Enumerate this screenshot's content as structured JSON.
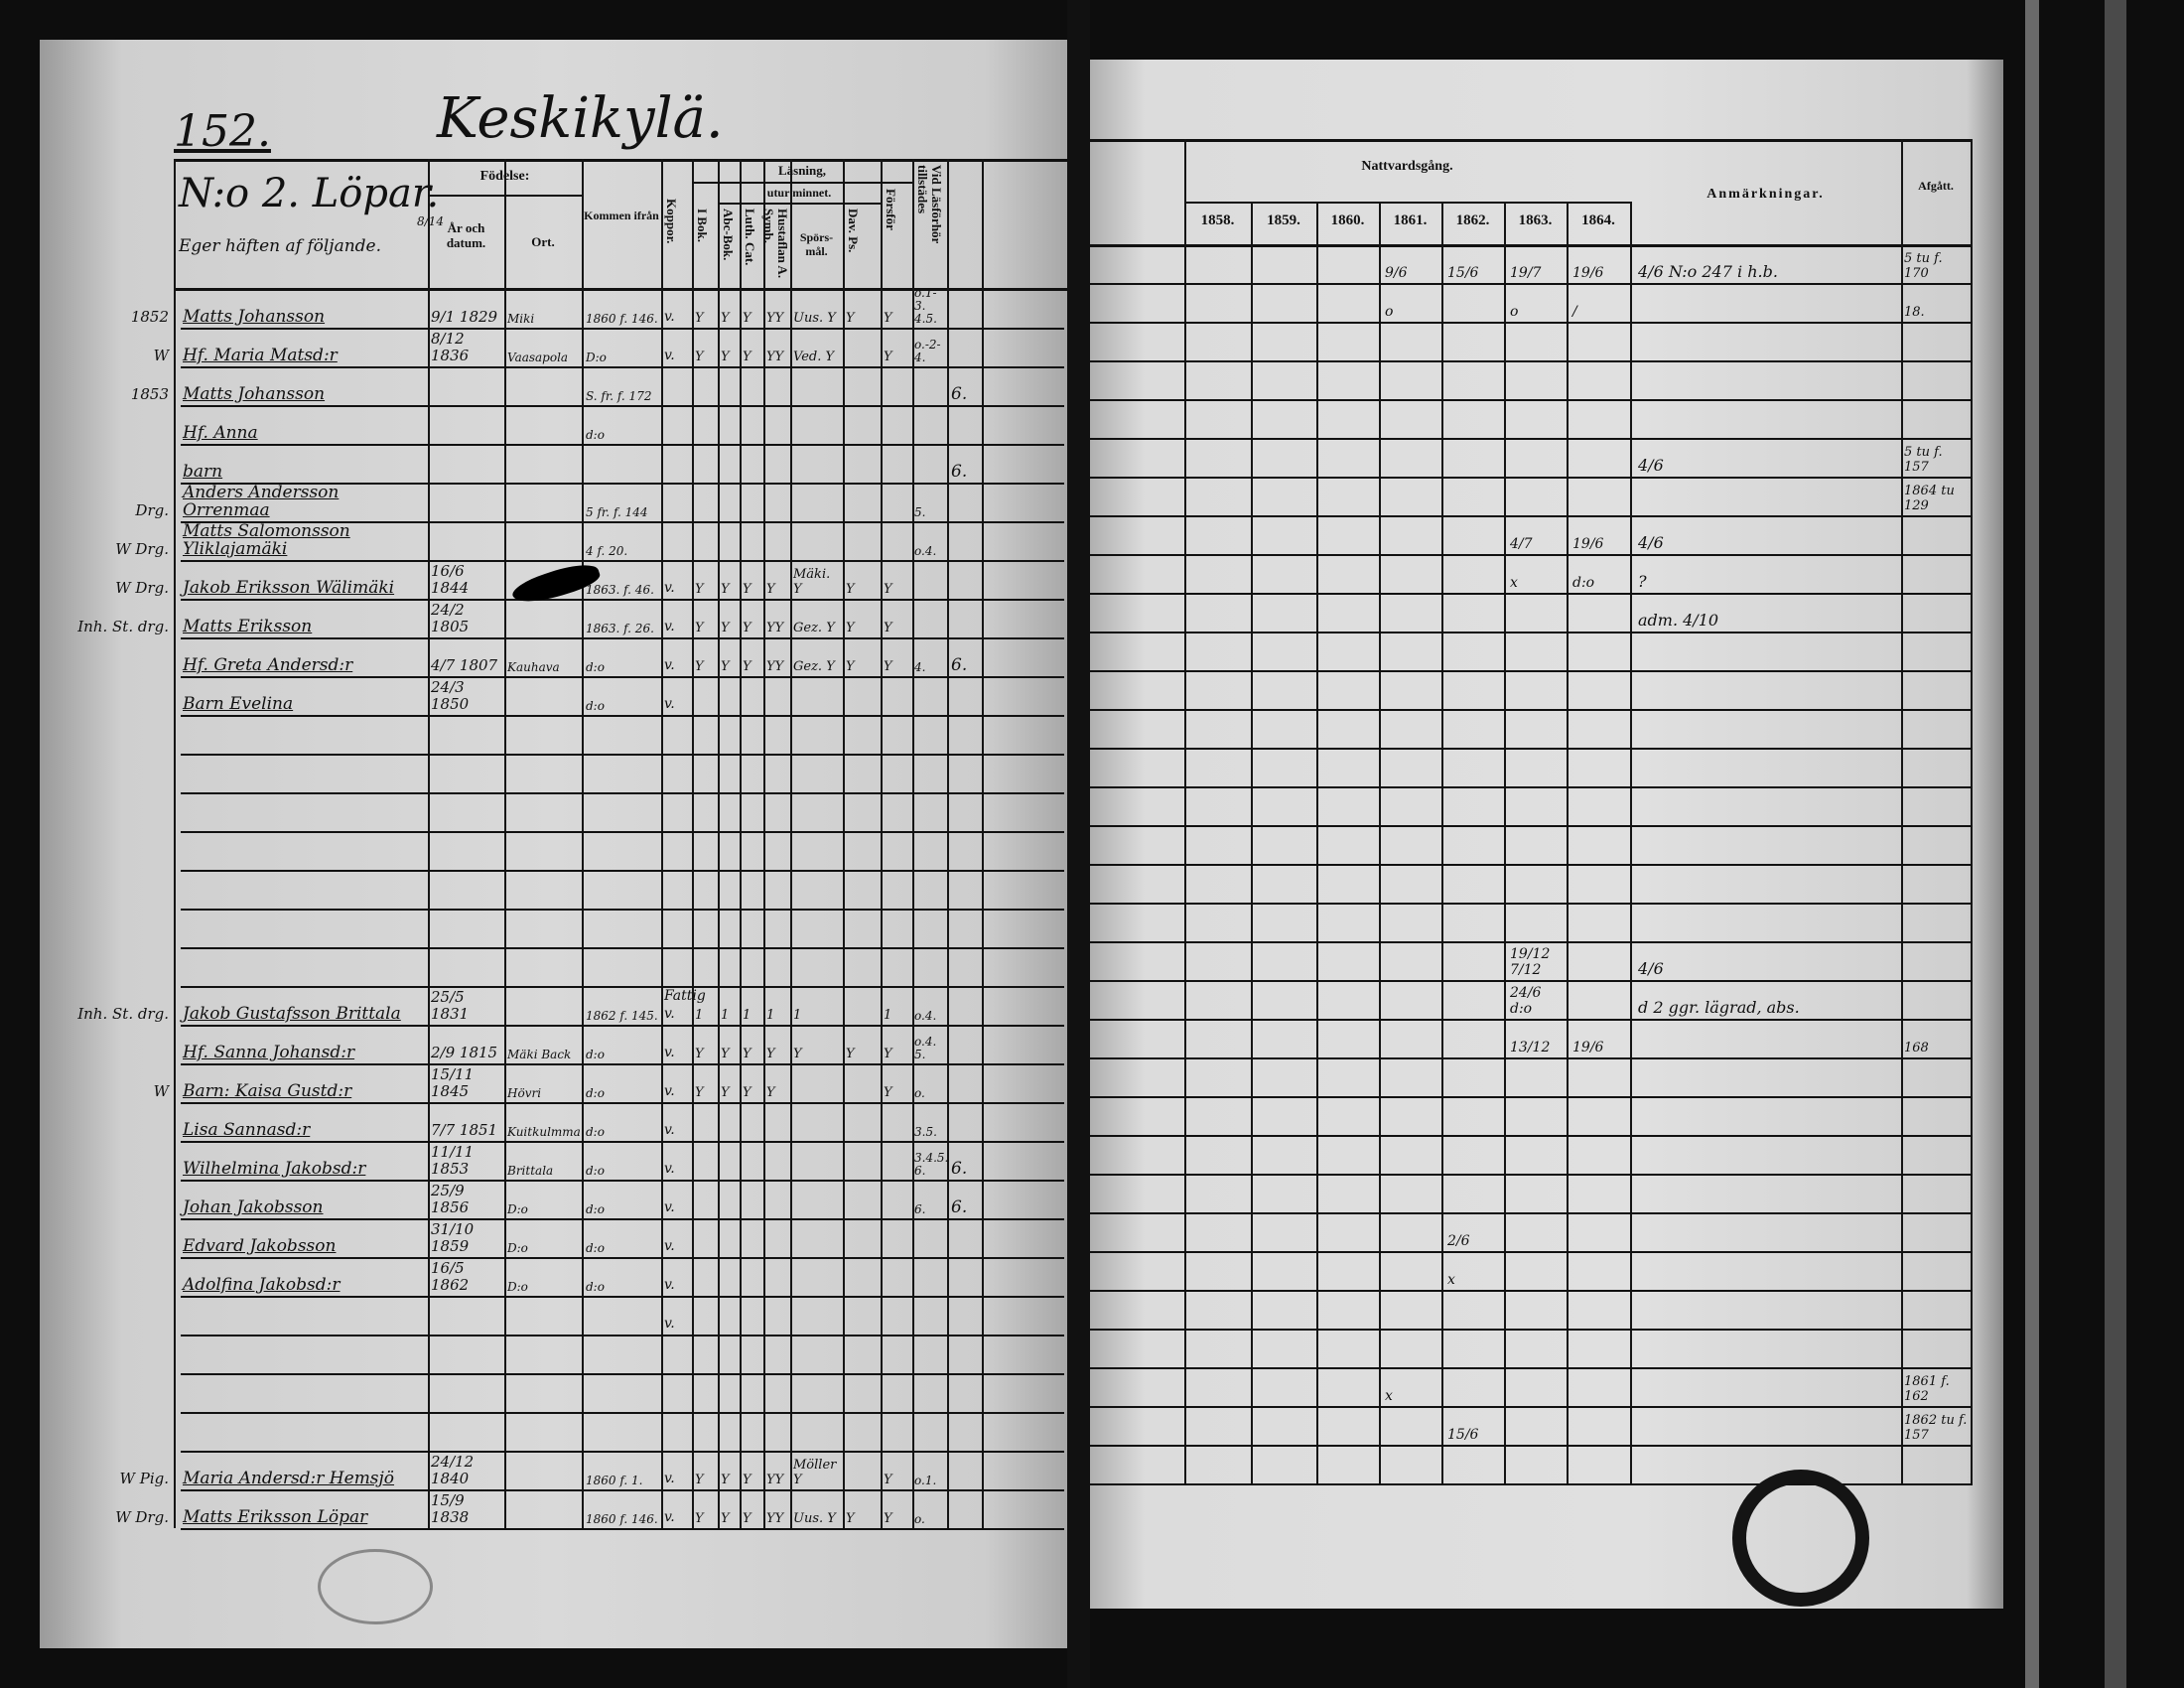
{
  "left_page": {
    "page_number": "152.",
    "place": "Keskikylä.",
    "household": "N:o 2. Löpar.",
    "owner_note": "Eger häften af följande.",
    "owner_fraction": "8/14",
    "headers": {
      "fodelse": "Födelse:",
      "ar_datum": "År och datum.",
      "ort": "Ort.",
      "kommen": "Kommen ifrån",
      "koppor": "Koppor.",
      "lasning": "Läsning,",
      "utur_minnet": "utur minnet.",
      "i_bok": "I Bok.",
      "abc": "Abc-Bok.",
      "luth": "Luth. Cat.",
      "hust": "Hustaflan A. Symb.",
      "spors": "Spörs-mål.",
      "dav": "Dav. Ps.",
      "forsfor": "Försför",
      "vid_las": "Vid Läsförhör tillstädes"
    },
    "rows": [
      {
        "row": 0,
        "margin": "1852",
        "name": "Matts Johansson",
        "date": "9/1 1829",
        "ort": "Miki",
        "kommen": "1860 f. 146.",
        "koppor": "v.",
        "reads": [
          "Y",
          "Y",
          "Y",
          "YY",
          "Uus. Y",
          "Y",
          "Y"
        ],
        "vid": "o.1-3. 4.5.",
        "extra": ""
      },
      {
        "row": 1,
        "margin": "W",
        "name": "Hf. Maria Matsd:r",
        "date": "8/12 1836",
        "ort": "Vaasapola",
        "kommen": "D:o",
        "koppor": "v.",
        "reads": [
          "Y",
          "Y",
          "Y",
          "YY",
          "Ved. Y",
          "",
          "Y"
        ],
        "vid": "o.-2-4.",
        "extra": ""
      },
      {
        "row": 2,
        "margin": "1853",
        "name": "Matts Johansson",
        "date": "",
        "ort": "",
        "kommen": "S. fr. f. 172",
        "koppor": "",
        "reads": [],
        "vid": "",
        "extra": "6."
      },
      {
        "row": 3,
        "margin": "",
        "name": "Hf. Anna",
        "date": "",
        "ort": "",
        "kommen": "d:o",
        "koppor": "",
        "reads": [],
        "vid": "",
        "extra": ""
      },
      {
        "row": 4,
        "margin": "",
        "name": "barn",
        "date": "",
        "ort": "",
        "kommen": "",
        "koppor": "",
        "reads": [],
        "vid": "",
        "extra": "6."
      },
      {
        "row": 5,
        "margin": "Drg.",
        "name": "Anders Andersson Orrenmaa",
        "date": "",
        "ort": "",
        "kommen": "5 fr. f. 144",
        "koppor": "",
        "reads": [],
        "vid": "5.",
        "extra": ""
      },
      {
        "row": 6,
        "margin": "W Drg.",
        "name": "Matts Salomonsson Yliklajamäki",
        "date": "",
        "ort": "",
        "kommen": "4 f. 20.",
        "koppor": "",
        "reads": [],
        "vid": "o.4.",
        "extra": ""
      },
      {
        "row": 7,
        "margin": "W Drg.",
        "name": "Jakob Eriksson Wälimäki",
        "date": "16/6 1844",
        "ort": "",
        "kommen": "1863. f. 46.",
        "koppor": "v.",
        "reads": [
          "Y",
          "Y",
          "Y",
          "Y",
          "Mäki. Y",
          "Y",
          "Y"
        ],
        "vid": "",
        "extra": ""
      },
      {
        "row": 8,
        "margin": "Inh. St. drg.",
        "name": "Matts Eriksson",
        "date": "24/2 1805",
        "ort": "",
        "kommen": "1863. f. 26.",
        "koppor": "v.",
        "reads": [
          "Y",
          "Y",
          "Y",
          "YY",
          "Gez. Y",
          "Y",
          "Y"
        ],
        "vid": "",
        "extra": ""
      },
      {
        "row": 9,
        "margin": "",
        "name": "Hf. Greta Andersd:r",
        "date": "4/7 1807",
        "ort": "Kauhava",
        "kommen": "d:o",
        "koppor": "v.",
        "reads": [
          "Y",
          "Y",
          "Y",
          "YY",
          "Gez. Y",
          "Y",
          "Y"
        ],
        "vid": "4.",
        "extra": "6."
      },
      {
        "row": 10,
        "margin": "",
        "name": "Barn Evelina",
        "date": "24/3 1850",
        "ort": "",
        "kommen": "d:o",
        "koppor": "v.",
        "reads": [],
        "vid": "",
        "extra": ""
      },
      {
        "row": 18,
        "margin": "Inh. St. drg.",
        "name": "Jakob Gustafsson Brittala",
        "date": "25/5 1831",
        "ort": "",
        "kommen": "1862 f. 145.",
        "koppor": "Fattig v.",
        "reads": [
          "1",
          "1",
          "1",
          "1",
          "1",
          "",
          "1"
        ],
        "vid": "o.4.",
        "extra": ""
      },
      {
        "row": 19,
        "margin": "",
        "name": "Hf. Sanna Johansd:r",
        "date": "2/9 1815",
        "ort": "Mäki Back",
        "kommen": "d:o",
        "koppor": "v.",
        "reads": [
          "Y",
          "Y",
          "Y",
          "Y",
          "Y",
          "Y",
          "Y"
        ],
        "vid": "o.4. 5.",
        "extra": ""
      },
      {
        "row": 20,
        "margin": "W",
        "name": "Barn: Kaisa Gustd:r",
        "date": "15/11 1845",
        "ort": "Hövri",
        "kommen": "d:o",
        "koppor": "v.",
        "reads": [
          "Y",
          "Y",
          "Y",
          "Y",
          "",
          "",
          "Y"
        ],
        "vid": "o.",
        "extra": ""
      },
      {
        "row": 21,
        "margin": "",
        "name": "Lisa Sannasd:r",
        "date": "7/7 1851",
        "ort": "Kuitkulmma",
        "kommen": "d:o",
        "koppor": "v.",
        "reads": [],
        "vid": "3.5.",
        "extra": ""
      },
      {
        "row": 22,
        "margin": "",
        "name": "Wilhelmina Jakobsd:r",
        "date": "11/11 1853",
        "ort": "Brittala",
        "kommen": "d:o",
        "koppor": "v.",
        "reads": [],
        "vid": "3.4.5. 6.",
        "extra": "6."
      },
      {
        "row": 23,
        "margin": "",
        "name": "Johan Jakobsson",
        "date": "25/9 1856",
        "ort": "D:o",
        "kommen": "d:o",
        "koppor": "v.",
        "reads": [],
        "vid": "6.",
        "extra": "6."
      },
      {
        "row": 24,
        "margin": "",
        "name": "Edvard Jakobsson",
        "date": "31/10 1859",
        "ort": "D:o",
        "kommen": "d:o",
        "koppor": "v.",
        "reads": [],
        "vid": "",
        "extra": ""
      },
      {
        "row": 25,
        "margin": "",
        "name": "Adolfina Jakobsd:r",
        "date": "16/5 1862",
        "ort": "D:o",
        "kommen": "d:o",
        "koppor": "v.",
        "reads": [],
        "vid": "",
        "extra": ""
      },
      {
        "row": 26,
        "margin": "",
        "name": "",
        "date": "",
        "ort": "",
        "kommen": "",
        "koppor": "v.",
        "reads": [],
        "vid": "",
        "extra": ""
      },
      {
        "row": 30,
        "margin": "W Pig.",
        "name": "Maria Andersd:r Hemsjö",
        "date": "24/12 1840",
        "ort": "",
        "kommen": "1860 f. 1.",
        "koppor": "v.",
        "reads": [
          "Y",
          "Y",
          "Y",
          "YY",
          "Möller Y",
          "",
          "Y"
        ],
        "vid": "o.1.",
        "extra": ""
      },
      {
        "row": 31,
        "margin": "W Drg.",
        "name": "Matts Eriksson Löpar",
        "date": "15/9 1838",
        "ort": "",
        "kommen": "1860 f. 146.",
        "koppor": "v.",
        "reads": [
          "Y",
          "Y",
          "Y",
          "YY",
          "Uus. Y",
          "Y",
          "Y"
        ],
        "vid": "o.",
        "extra": ""
      }
    ]
  },
  "right_page": {
    "headers": {
      "nattvardsgang": "Nattvardsgång.",
      "years": [
        "1858.",
        "1859.",
        "1860.",
        "1861.",
        "1862.",
        "1863.",
        "1864."
      ],
      "anmarkningar": "Anmärkningar.",
      "afgatt": "Afgått."
    },
    "rows": [
      {
        "row": 0,
        "years": [
          "",
          "",
          "",
          "9/6",
          "15/6",
          "19/7",
          "19/6"
        ],
        "anm": "4/6 N:o 247 i h.b.",
        "afg": "5 tu f. 170"
      },
      {
        "row": 1,
        "years": [
          "",
          "",
          "",
          "o",
          "",
          "o",
          "/"
        ],
        "anm": "",
        "afg": "18."
      },
      {
        "row": 5,
        "years": [
          "",
          "",
          "",
          "",
          "",
          "",
          ""
        ],
        "anm": "4/6",
        "afg": "5 tu f. 157"
      },
      {
        "row": 6,
        "years": [
          "",
          "",
          "",
          "",
          "",
          "",
          ""
        ],
        "anm": "",
        "afg": "1864 tu 129"
      },
      {
        "row": 7,
        "years": [
          "",
          "",
          "",
          "",
          "",
          "4/7",
          "19/6"
        ],
        "anm": "4/6",
        "afg": ""
      },
      {
        "row": 8,
        "years": [
          "",
          "",
          "",
          "",
          "",
          "x",
          "d:o"
        ],
        "anm": "?",
        "afg": ""
      },
      {
        "row": 9,
        "years": [
          "",
          "",
          "",
          "",
          "",
          "",
          ""
        ],
        "anm": "adm. 4/10",
        "afg": ""
      },
      {
        "row": 18,
        "years": [
          "",
          "",
          "",
          "",
          "",
          "19/12 7/12",
          ""
        ],
        "anm": "4/6",
        "afg": ""
      },
      {
        "row": 19,
        "years": [
          "",
          "",
          "",
          "",
          "",
          "24/6 d:o",
          ""
        ],
        "anm": "d 2 ggr. lägrad, abs.",
        "afg": ""
      },
      {
        "row": 20,
        "years": [
          "",
          "",
          "",
          "",
          "",
          "13/12",
          "19/6"
        ],
        "anm": "",
        "afg": "168"
      },
      {
        "row": 25,
        "years": [
          "",
          "",
          "",
          "",
          "2/6",
          "",
          ""
        ],
        "anm": "",
        "afg": ""
      },
      {
        "row": 26,
        "years": [
          "",
          "",
          "",
          "",
          "x",
          "",
          ""
        ],
        "anm": "",
        "afg": ""
      },
      {
        "row": 29,
        "years": [
          "",
          "",
          "",
          "x",
          "",
          "",
          ""
        ],
        "anm": "",
        "afg": "1861 f. 162"
      },
      {
        "row": 30,
        "years": [
          "",
          "",
          "",
          "",
          "15/6",
          "",
          ""
        ],
        "anm": "",
        "afg": "1862 tu f. 157"
      }
    ]
  },
  "colors": {
    "paper": "#d9d9d9",
    "ink": "#111111",
    "border": "#0d0d0d"
  }
}
